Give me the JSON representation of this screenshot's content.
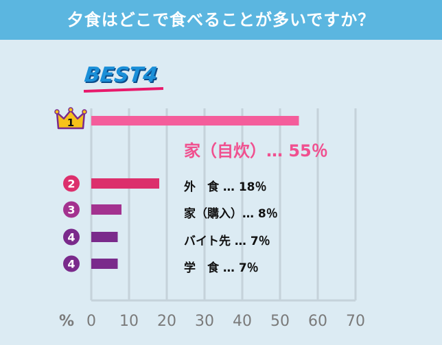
{
  "header": {
    "title": "夕食はどこで食べることが多いですか？"
  },
  "badge": {
    "text": "BEST4"
  },
  "colors": {
    "header_bg": "#5bb6e0",
    "background": "#dcebf3",
    "bar_rank1": "#f45d9b",
    "bar_rank2": "#dc2f6c",
    "bar_rank3": "#a3328f",
    "bar_rank4": "#7a2a8b",
    "grid": "#c5d2da"
  },
  "chart_data": {
    "type": "bar",
    "orientation": "horizontal",
    "categories": [
      "家（自炊）",
      "外　食",
      "家（購入）",
      "バイト先",
      "学　食"
    ],
    "values": [
      55,
      18,
      8,
      7,
      7
    ],
    "ranks": [
      "1",
      "2",
      "3",
      "4",
      "4"
    ],
    "value_labels": [
      "家（自炊）…  55％",
      "外　食 …  18％",
      "家（購入）…  8％",
      "バイト先  …  7％",
      "学　食 …  7％"
    ],
    "xlim": [
      0,
      70
    ],
    "xticks": [
      "0",
      "10",
      "20",
      "30",
      "40",
      "50",
      "60",
      "70"
    ],
    "xlabel": "%",
    "grid": true
  }
}
